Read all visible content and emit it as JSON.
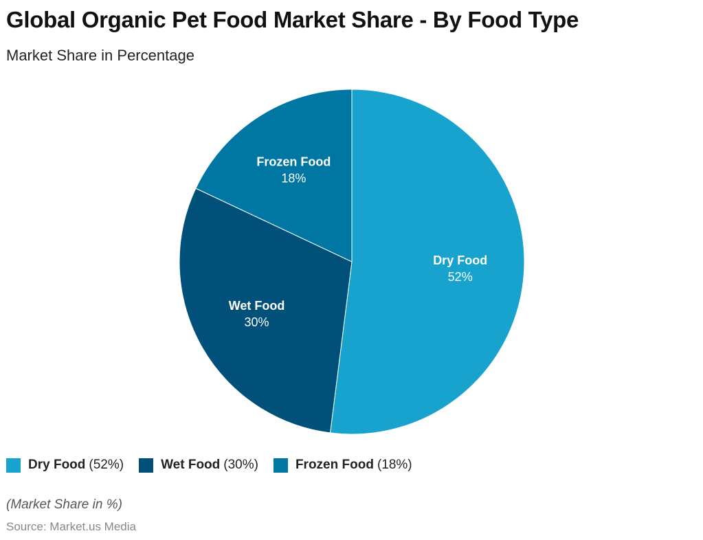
{
  "chart_data": {
    "type": "pie",
    "title": "Global Organic Pet Food Market Share - By Food Type",
    "subtitle": "Market Share in Percentage",
    "slices": [
      {
        "label": "Dry Food",
        "value": 52,
        "value_label": "52%",
        "legend": "(52%)",
        "color": "#18a3cf"
      },
      {
        "label": "Wet Food",
        "value": 30,
        "value_label": "30%",
        "legend": "(30%)",
        "color": "#00507a"
      },
      {
        "label": "Frozen Food",
        "value": 18,
        "value_label": "18%",
        "legend": "(18%)",
        "color": "#0077a2"
      }
    ],
    "legend_position": "bottom-left",
    "note": "(Market Share in %)",
    "source": "Source: Market.us Media"
  }
}
